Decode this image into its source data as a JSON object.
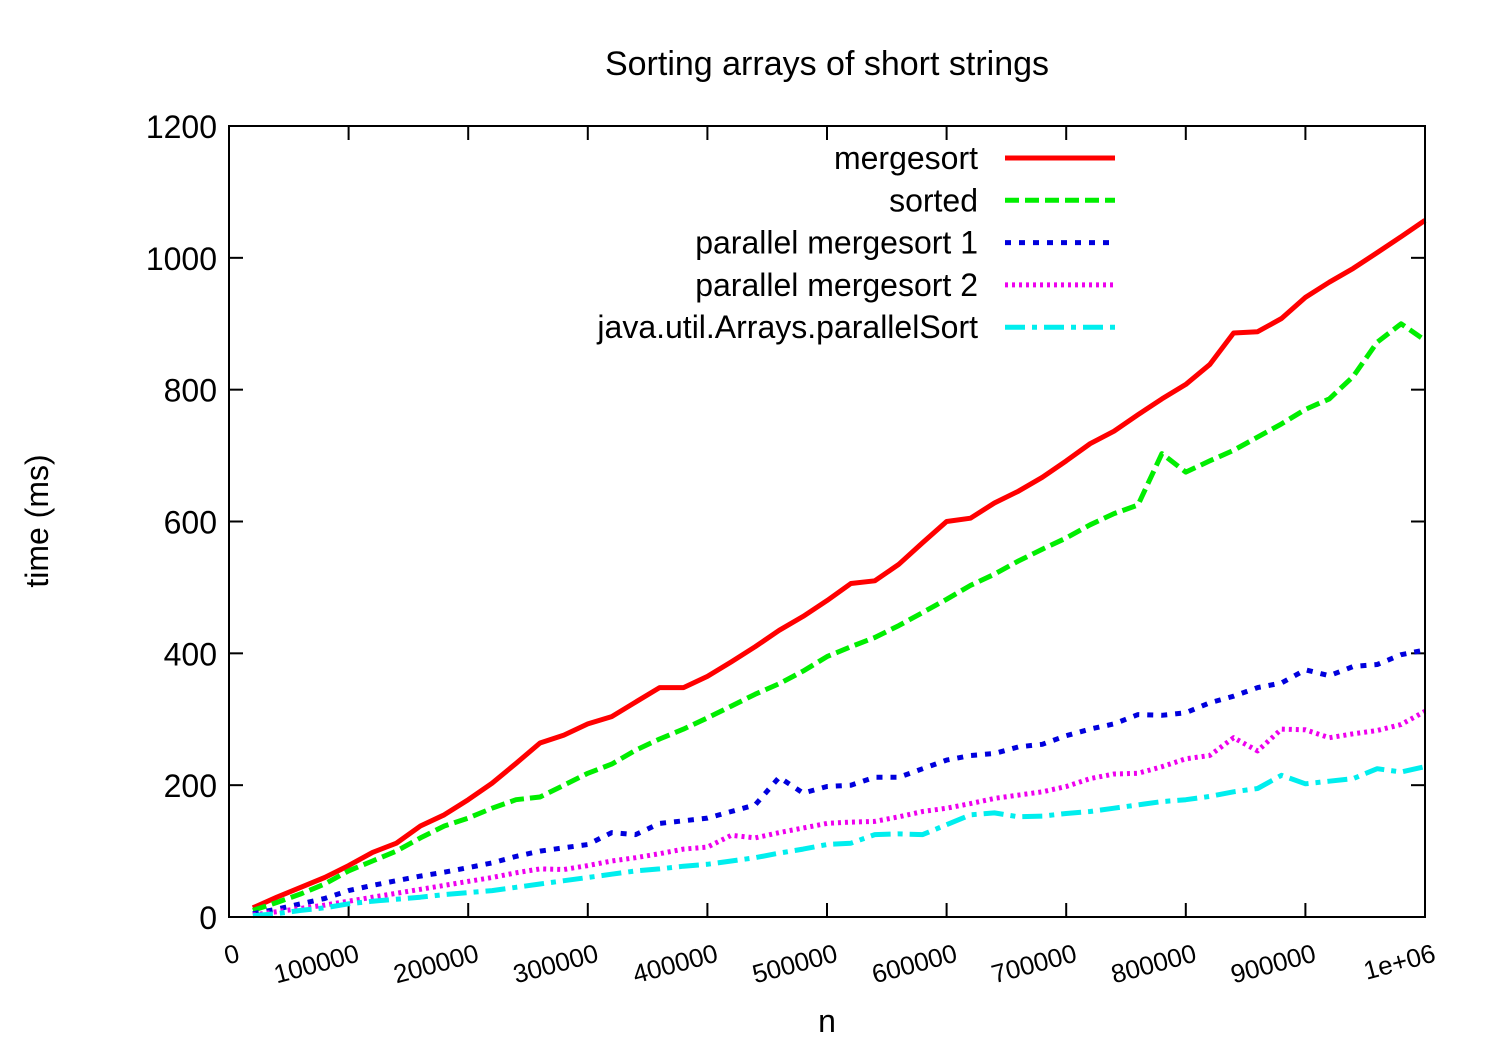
{
  "chart_data": {
    "type": "line",
    "title": "Sorting arrays of short strings",
    "xlabel": "n",
    "ylabel": "time (ms)",
    "xlim": [
      0,
      1000000
    ],
    "ylim": [
      0,
      1200
    ],
    "xticks": [
      0,
      100000,
      200000,
      300000,
      400000,
      500000,
      600000,
      700000,
      800000,
      900000,
      1000000
    ],
    "xtick_labels": [
      "0",
      "100000",
      "200000",
      "300000",
      "400000",
      "500000",
      "600000",
      "700000",
      "800000",
      "900000",
      "1e+06"
    ],
    "yticks": [
      0,
      200,
      400,
      600,
      800,
      1000,
      1200
    ],
    "ytick_labels": [
      "0",
      "200",
      "400",
      "600",
      "800",
      "1000",
      "1200"
    ],
    "grid": false,
    "legend_position": "top-right",
    "x": [
      20000,
      40000,
      60000,
      80000,
      100000,
      120000,
      140000,
      160000,
      180000,
      200000,
      220000,
      240000,
      260000,
      280000,
      300000,
      320000,
      340000,
      360000,
      380000,
      400000,
      420000,
      440000,
      460000,
      480000,
      500000,
      520000,
      540000,
      560000,
      580000,
      600000,
      620000,
      640000,
      660000,
      680000,
      700000,
      720000,
      740000,
      760000,
      780000,
      800000,
      820000,
      840000,
      860000,
      880000,
      900000,
      920000,
      940000,
      960000,
      980000,
      1000000
    ],
    "series": [
      {
        "name": "mergesort",
        "color": "#ff0000",
        "style": "solid",
        "values": [
          14,
          30,
          45,
          60,
          78,
          98,
          112,
          138,
          155,
          178,
          203,
          233,
          264,
          276,
          293,
          304,
          326,
          348,
          348,
          365,
          387,
          410,
          435,
          456,
          480,
          506,
          510,
          535,
          568,
          600,
          605,
          628,
          646,
          667,
          692,
          718,
          737,
          762,
          786,
          808,
          838,
          886,
          888,
          908,
          940,
          963,
          984,
          1008,
          1032,
          1057
        ]
      },
      {
        "name": "sorted",
        "color": "#00ee00",
        "style": "dashed",
        "values": [
          10,
          22,
          35,
          50,
          70,
          85,
          100,
          120,
          138,
          150,
          165,
          178,
          182,
          200,
          218,
          232,
          253,
          270,
          285,
          302,
          320,
          338,
          354,
          373,
          395,
          410,
          424,
          442,
          462,
          482,
          503,
          520,
          540,
          558,
          575,
          595,
          612,
          625,
          703,
          675,
          692,
          708,
          728,
          748,
          770,
          786,
          820,
          872,
          900,
          875
        ]
      },
      {
        "name": "parallel mergesort 1",
        "color": "#0000dd",
        "style": "dotted",
        "values": [
          5,
          12,
          20,
          28,
          40,
          48,
          55,
          62,
          68,
          75,
          82,
          92,
          100,
          105,
          110,
          128,
          125,
          142,
          146,
          150,
          160,
          170,
          212,
          188,
          198,
          200,
          212,
          212,
          225,
          238,
          245,
          248,
          258,
          262,
          275,
          285,
          293,
          307,
          306,
          310,
          325,
          335,
          348,
          355,
          375,
          366,
          380,
          383,
          398,
          405
        ]
      },
      {
        "name": "parallel mergesort 2",
        "color": "#ee00ee",
        "style": "fine-dotted",
        "values": [
          3,
          8,
          13,
          18,
          24,
          30,
          36,
          42,
          48,
          54,
          60,
          67,
          73,
          72,
          78,
          85,
          90,
          96,
          103,
          106,
          124,
          120,
          128,
          135,
          142,
          144,
          145,
          152,
          160,
          165,
          172,
          180,
          185,
          190,
          198,
          210,
          217,
          218,
          228,
          240,
          245,
          272,
          252,
          285,
          284,
          272,
          278,
          283,
          292,
          312
        ]
      },
      {
        "name": "java.util.Arrays.parallelSort",
        "color": "#00eeee",
        "style": "dash-dot",
        "values": [
          2,
          5,
          10,
          14,
          20,
          24,
          27,
          30,
          34,
          37,
          40,
          45,
          50,
          55,
          60,
          65,
          70,
          73,
          77,
          80,
          85,
          90,
          97,
          103,
          110,
          112,
          125,
          126,
          125,
          140,
          155,
          158,
          152,
          153,
          157,
          160,
          165,
          170,
          175,
          178,
          183,
          190,
          195,
          215,
          202,
          206,
          210,
          225,
          220,
          228
        ]
      }
    ]
  }
}
